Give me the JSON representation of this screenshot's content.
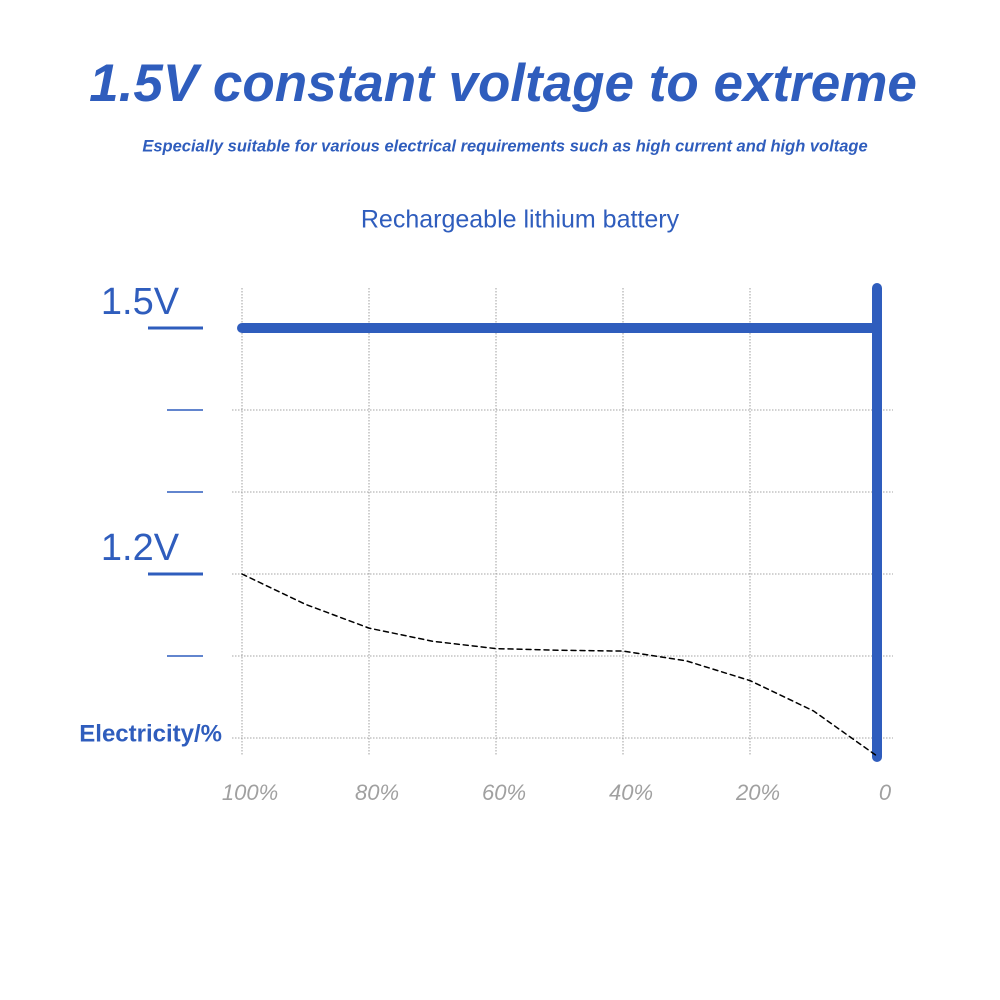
{
  "heading": {
    "title": "1.5V constant voltage to extreme",
    "subtitle": "Especially suitable for various electrical requirements such as high current and high voltage"
  },
  "chart_data": {
    "type": "line",
    "title": "Rechargeable lithium battery",
    "x_label": "Electricity/%",
    "x": [
      100,
      90,
      80,
      70,
      60,
      50,
      40,
      30,
      20,
      10,
      0
    ],
    "series": [
      {
        "color": "#2f5dbd",
        "line_style": "solid",
        "values": [
          1.5,
          1.5,
          1.5,
          1.5,
          1.5,
          1.5,
          1.5,
          1.5,
          1.5,
          1.5,
          1.5
        ]
      },
      {
        "color": "#000000",
        "line_style": "dashed",
        "values": [
          1.2,
          1.163,
          1.134,
          1.118,
          1.109,
          1.107,
          1.106,
          1.094,
          1.07,
          1.033,
          0.978
        ]
      }
    ],
    "xlim": [
      100,
      0
    ],
    "ylim": [
      0.95,
      1.55
    ],
    "xticks": [
      {
        "value": 100,
        "label": "100%"
      },
      {
        "value": 80,
        "label": "80%"
      },
      {
        "value": 60,
        "label": "60%"
      },
      {
        "value": 40,
        "label": "40%"
      },
      {
        "value": 20,
        "label": "20%"
      },
      0
    ],
    "yticks": [
      {
        "value": 1.5,
        "label": "1.5V"
      },
      {
        "value": 1.2,
        "label": "1.2V"
      }
    ],
    "minor_yticks": [
      1.4,
      1.3,
      1.1
    ],
    "ygrid": [
      1.4,
      1.3,
      1.2,
      1.1,
      1.0
    ],
    "grid": true
  }
}
